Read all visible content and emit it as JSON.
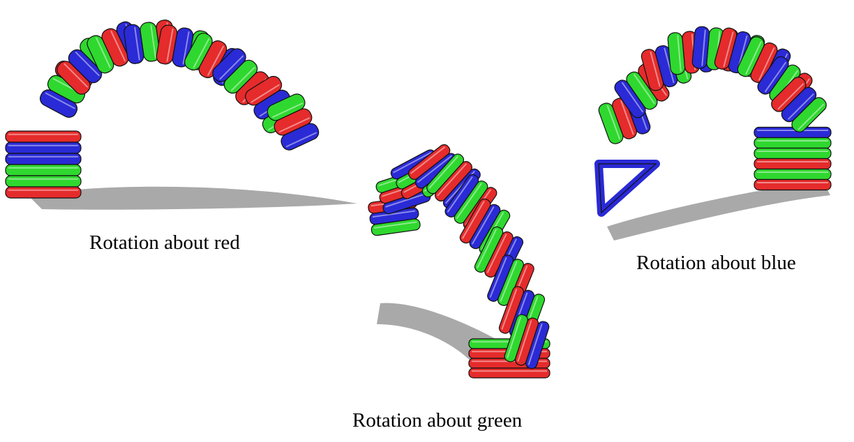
{
  "captions": {
    "red": "Rotation about red",
    "green": "Rotation about green",
    "blue": "Rotation about blue"
  },
  "colors": {
    "red": "#e52b2b",
    "green": "#2fd82f",
    "blue": "#2a2ad6",
    "outline": "#111111",
    "shadow": "#8c8c8c"
  },
  "figures": {
    "red": {
      "depicts": "arch-structure-rotated-about-red-axis"
    },
    "green": {
      "depicts": "arch-structure-rotated-about-green-axis"
    },
    "blue": {
      "depicts": "arch-structure-rotated-about-blue-axis"
    }
  }
}
